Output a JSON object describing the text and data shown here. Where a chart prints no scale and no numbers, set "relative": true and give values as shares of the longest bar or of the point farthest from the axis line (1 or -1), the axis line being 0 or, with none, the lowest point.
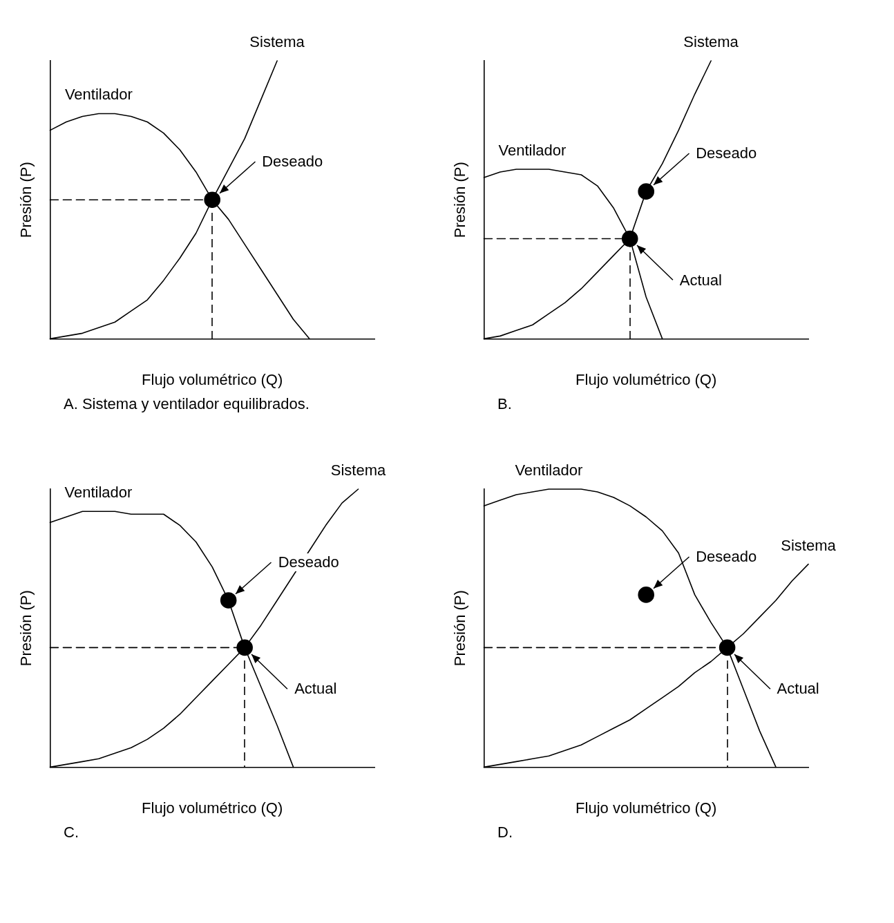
{
  "chart_data": [
    {
      "type": "line",
      "relative": true,
      "marker": "none",
      "legend": false,
      "xlabel": "Flujo volumétrico (Q)",
      "ylabel": "Presión (P)",
      "annotations": [
        "A. Sistema y ventilador equilibrados."
      ],
      "categories": [
        null,
        null,
        null,
        null,
        null,
        null,
        null,
        null,
        null,
        null,
        null,
        null,
        null,
        null,
        null,
        null,
        null,
        null,
        null,
        null,
        null
      ],
      "series": [
        {
          "name": "Ventilador",
          "color": "#000000",
          "values": [
            0.75,
            0.78,
            0.8,
            0.81,
            0.81,
            0.8,
            0.78,
            0.74,
            0.68,
            0.6,
            0.5,
            0.43,
            0.34,
            0.25,
            0.16,
            0.07,
            0,
            null,
            null,
            null,
            null
          ]
        },
        {
          "name": "Sistema",
          "color": "#000000",
          "values": [
            0,
            0.01,
            0.02,
            0.04,
            0.06,
            0.1,
            0.14,
            0.21,
            0.29,
            0.38,
            0.5,
            0.61,
            0.72,
            0.86,
            1,
            null,
            null,
            null,
            null,
            null,
            null
          ]
        },
        {
          "name": "Deseado",
          "marker": "circle",
          "color": "#000000",
          "values": [
            null,
            null,
            null,
            null,
            null,
            null,
            null,
            null,
            null,
            null,
            0.5,
            null,
            null,
            null,
            null,
            null,
            null,
            null,
            null,
            null,
            null
          ]
        },
        {
          "line_style": "dashed",
          "color": "#000000",
          "values": [
            0.5,
            0.5,
            0.5,
            0.5,
            0.5,
            0.5,
            0.5,
            0.5,
            0.5,
            0.5,
            0.5,
            null,
            null,
            null,
            null,
            null,
            null,
            null,
            null,
            null,
            null
          ]
        }
      ]
    },
    {
      "type": "line",
      "relative": true,
      "marker": "none",
      "legend": false,
      "xlabel": "Flujo volumétrico (Q)",
      "ylabel": "Presión (P)",
      "annotations": [
        "B."
      ],
      "categories": [
        null,
        null,
        null,
        null,
        null,
        null,
        null,
        null,
        null,
        null,
        null,
        null,
        null,
        null,
        null,
        null,
        null,
        null,
        null,
        null,
        null
      ],
      "series": [
        {
          "name": "Ventilador",
          "color": "#000000",
          "values": [
            0.58,
            0.6,
            0.61,
            0.61,
            0.61,
            0.6,
            0.59,
            0.55,
            0.47,
            0.36,
            0.15,
            0,
            null,
            null,
            null,
            null,
            null,
            null,
            null,
            null,
            null
          ]
        },
        {
          "name": "Sistema",
          "color": "#000000",
          "values": [
            0,
            0.01,
            0.03,
            0.05,
            0.09,
            0.13,
            0.18,
            0.24,
            0.3,
            0.36,
            0.53,
            0.63,
            0.75,
            0.88,
            1,
            null,
            null,
            null,
            null,
            null,
            null
          ]
        },
        {
          "name": "Deseado",
          "marker": "circle",
          "color": "#000000",
          "values": [
            null,
            null,
            null,
            null,
            null,
            null,
            null,
            null,
            null,
            null,
            0.53,
            null,
            null,
            null,
            null,
            null,
            null,
            null,
            null,
            null,
            null
          ]
        },
        {
          "name": "Actual",
          "marker": "circle",
          "color": "#000000",
          "values": [
            null,
            null,
            null,
            null,
            null,
            null,
            null,
            null,
            null,
            0.36,
            null,
            null,
            null,
            null,
            null,
            null,
            null,
            null,
            null,
            null,
            null
          ]
        },
        {
          "line_style": "dashed",
          "color": "#000000",
          "values": [
            0.36,
            0.36,
            0.36,
            0.36,
            0.36,
            0.36,
            0.36,
            0.36,
            0.36,
            0.36,
            null,
            null,
            null,
            null,
            null,
            null,
            null,
            null,
            null,
            null,
            null
          ]
        }
      ]
    },
    {
      "type": "line",
      "relative": true,
      "marker": "none",
      "legend": false,
      "xlabel": "Flujo volumétrico (Q)",
      "ylabel": "Presión (P)",
      "annotations": [
        "C."
      ],
      "categories": [
        null,
        null,
        null,
        null,
        null,
        null,
        null,
        null,
        null,
        null,
        null,
        null,
        null,
        null,
        null,
        null,
        null,
        null,
        null,
        null,
        null
      ],
      "series": [
        {
          "name": "Ventilador",
          "color": "#000000",
          "values": [
            0.88,
            0.9,
            0.92,
            0.92,
            0.92,
            0.91,
            0.91,
            0.91,
            0.87,
            0.81,
            0.72,
            0.6,
            0.43,
            0.29,
            0.15,
            0,
            null,
            null,
            null,
            null,
            null
          ]
        },
        {
          "name": "Sistema",
          "color": "#000000",
          "values": [
            0,
            0.01,
            0.02,
            0.03,
            0.05,
            0.07,
            0.1,
            0.14,
            0.19,
            0.25,
            0.31,
            0.37,
            0.43,
            0.51,
            0.6,
            0.69,
            0.78,
            0.87,
            0.95,
            1,
            null
          ]
        },
        {
          "name": "Deseado",
          "marker": "circle",
          "color": "#000000",
          "values": [
            null,
            null,
            null,
            null,
            null,
            null,
            null,
            null,
            null,
            null,
            null,
            0.6,
            null,
            null,
            null,
            null,
            null,
            null,
            null,
            null,
            null
          ]
        },
        {
          "name": "Actual",
          "marker": "circle",
          "color": "#000000",
          "values": [
            null,
            null,
            null,
            null,
            null,
            null,
            null,
            null,
            null,
            null,
            null,
            null,
            0.43,
            null,
            null,
            null,
            null,
            null,
            null,
            null,
            null
          ]
        },
        {
          "line_style": "dashed",
          "color": "#000000",
          "values": [
            0.43,
            0.43,
            0.43,
            0.43,
            0.43,
            0.43,
            0.43,
            0.43,
            0.43,
            0.43,
            0.43,
            0.43,
            0.43,
            null,
            null,
            null,
            null,
            null,
            null,
            null,
            null
          ]
        }
      ]
    },
    {
      "type": "line",
      "relative": true,
      "marker": "none",
      "legend": false,
      "xlabel": "Flujo volumétrico (Q)",
      "ylabel": "Presión (P)",
      "annotations": [
        "D."
      ],
      "categories": [
        null,
        null,
        null,
        null,
        null,
        null,
        null,
        null,
        null,
        null,
        null,
        null,
        null,
        null,
        null,
        null,
        null,
        null,
        null,
        null,
        null
      ],
      "series": [
        {
          "name": "Ventilador",
          "color": "#000000",
          "values": [
            0.94,
            0.96,
            0.98,
            0.99,
            1,
            1,
            1,
            0.99,
            0.97,
            0.94,
            0.9,
            0.85,
            0.77,
            0.62,
            0.52,
            0.43,
            0.28,
            0.13,
            0,
            null,
            null
          ]
        },
        {
          "name": "Sistema",
          "color": "#000000",
          "values": [
            0,
            0.01,
            0.02,
            0.03,
            0.04,
            0.06,
            0.08,
            0.11,
            0.14,
            0.17,
            0.21,
            0.25,
            0.29,
            0.34,
            0.38,
            0.43,
            0.48,
            0.54,
            0.6,
            0.67,
            0.73
          ]
        },
        {
          "name": "Deseado",
          "marker": "circle",
          "color": "#000000",
          "values": [
            null,
            null,
            null,
            null,
            null,
            null,
            null,
            null,
            null,
            null,
            0.62,
            null,
            null,
            null,
            null,
            null,
            null,
            null,
            null,
            null,
            null
          ]
        },
        {
          "name": "Actual",
          "marker": "circle",
          "color": "#000000",
          "values": [
            null,
            null,
            null,
            null,
            null,
            null,
            null,
            null,
            null,
            null,
            null,
            null,
            null,
            null,
            null,
            0.43,
            null,
            null,
            null,
            null,
            null
          ]
        },
        {
          "line_style": "dashed",
          "color": "#000000",
          "values": [
            0.43,
            0.43,
            0.43,
            0.43,
            0.43,
            0.43,
            0.43,
            0.43,
            0.43,
            0.43,
            0.43,
            0.43,
            0.43,
            0.43,
            0.43,
            0.43,
            null,
            null,
            null,
            null,
            null
          ]
        }
      ]
    }
  ]
}
